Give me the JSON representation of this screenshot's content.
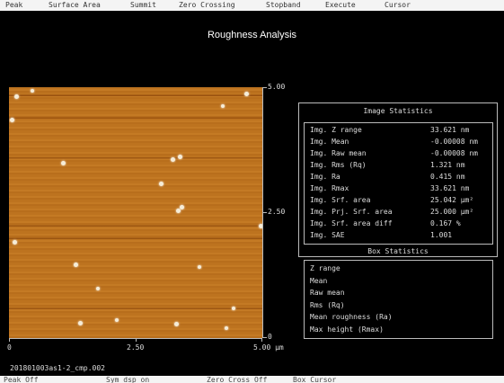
{
  "menu": {
    "items": [
      "Peak",
      "Surface Area",
      "Summit",
      "Zero Crossing",
      "Stopband",
      "Execute",
      "Cursor"
    ]
  },
  "title": "Roughness Analysis",
  "image": {
    "y_ticks": [
      "5.00",
      "2.50",
      "0"
    ],
    "x_ticks": [
      "0",
      "2.50",
      "5.00 µm"
    ]
  },
  "image_statistics": {
    "title": "Image Statistics",
    "rows": [
      [
        "Img. Z range",
        "33.621 nm"
      ],
      [
        "Img. Mean",
        "-0.00008 nm"
      ],
      [
        "Img. Raw mean",
        "-0.00008 nm"
      ],
      [
        "Img. Rms (Rq)",
        "1.321 nm"
      ],
      [
        "Img. Ra",
        "0.415 nm"
      ],
      [
        "Img. Rmax",
        "33.621 nm"
      ],
      [
        "Img. Srf. area",
        "25.042 µm²"
      ],
      [
        "Img. Prj. Srf. area",
        "25.000 µm²"
      ],
      [
        "Img. Srf. area diff",
        "0.167 %"
      ],
      [
        "Img. SAE",
        "1.001"
      ]
    ]
  },
  "box_statistics": {
    "title": "Box Statistics",
    "rows": [
      "Z range",
      "Mean",
      "Raw mean",
      "Rms (Rq)",
      "Mean roughness (Ra)",
      "Max height (Rmax)"
    ]
  },
  "filename": "201801003as1-2_cmp.002",
  "status": {
    "items": [
      "Peak Off",
      "Sym dsp on",
      "Zero Cross  Off",
      "Box Cursor"
    ]
  }
}
